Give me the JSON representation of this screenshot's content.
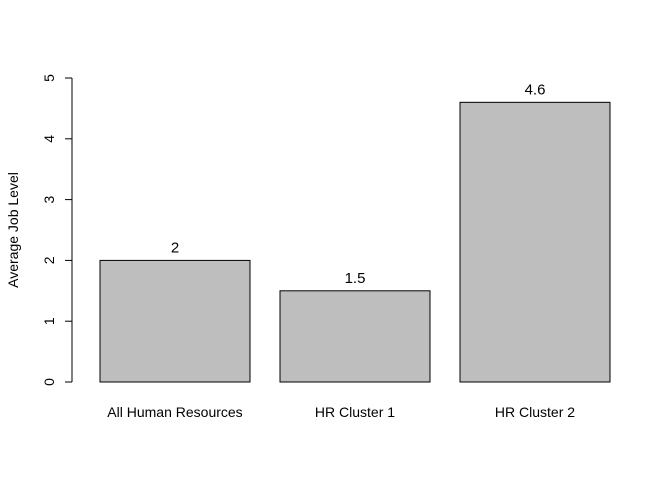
{
  "chart_data": {
    "type": "bar",
    "title": "",
    "xlabel": "",
    "ylabel": "Average Job Level",
    "categories": [
      "All Human Resources",
      "HR Cluster 1",
      "HR Cluster 2"
    ],
    "values": [
      2,
      1.5,
      4.6
    ],
    "data_labels": [
      "2",
      "1.5",
      "4.6"
    ],
    "ylim": [
      0,
      5
    ],
    "yticks": [
      0,
      1,
      2,
      3,
      4,
      5
    ],
    "grid": false,
    "legend": "none",
    "colors": {
      "bar_fill": "#bebebe",
      "bar_stroke": "#000000",
      "axis": "#000000"
    }
  }
}
